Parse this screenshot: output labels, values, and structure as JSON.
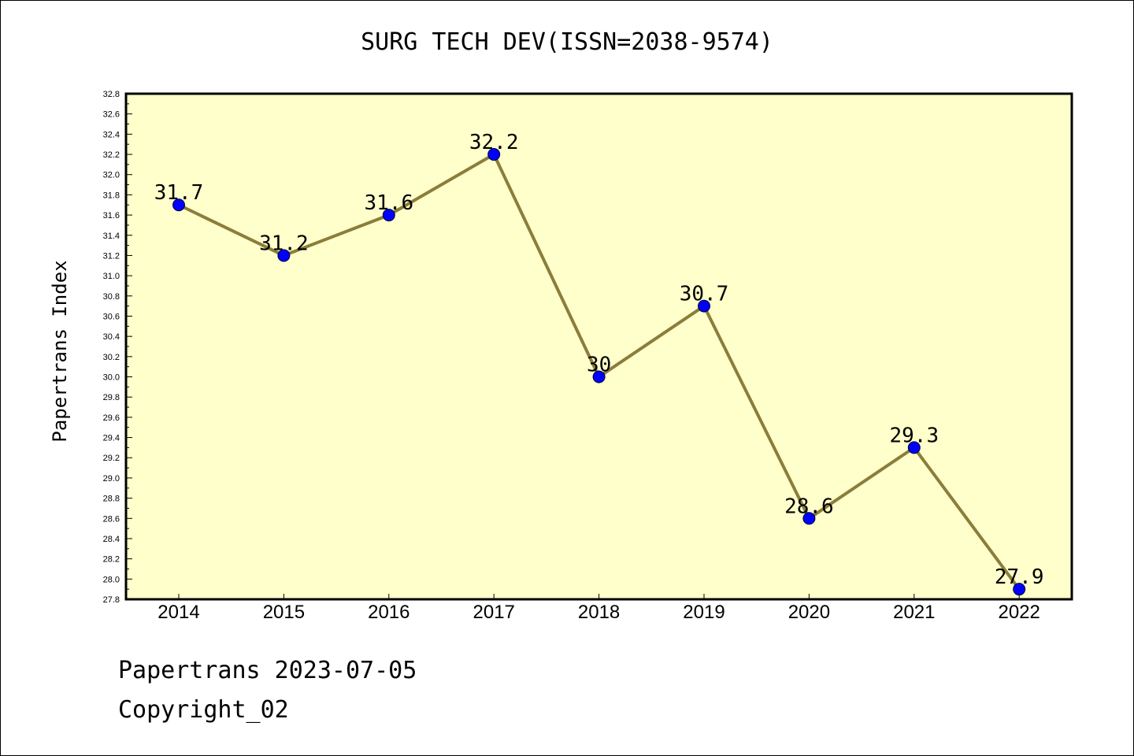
{
  "chart_data": {
    "type": "line",
    "title": "SURG TECH DEV(ISSN=2038-9574)",
    "ylabel": "Papertrans Index",
    "xlabel": "",
    "categories": [
      "2014",
      "2015",
      "2016",
      "2017",
      "2018",
      "2019",
      "2020",
      "2021",
      "2022"
    ],
    "series": [
      {
        "values": [
          31.7,
          31.2,
          31.6,
          32.2,
          30.0,
          30.7,
          28.6,
          29.3,
          27.9
        ],
        "labels": [
          "31.7",
          "31.2",
          "31.6",
          "32.2",
          "30",
          "30.7",
          "28.6",
          "29.3",
          "27.9"
        ]
      }
    ],
    "ylim": [
      27.8,
      32.8
    ],
    "ytick_step": 0.2,
    "grid": false,
    "legend": "none"
  },
  "footer": {
    "line1": "Papertrans 2023-07-05",
    "line2": "Copyright_02"
  },
  "colors": {
    "plot_background": "#FFFFCC",
    "line": "#8B7D3A",
    "marker": "#0000FF",
    "axis": "#000000"
  }
}
